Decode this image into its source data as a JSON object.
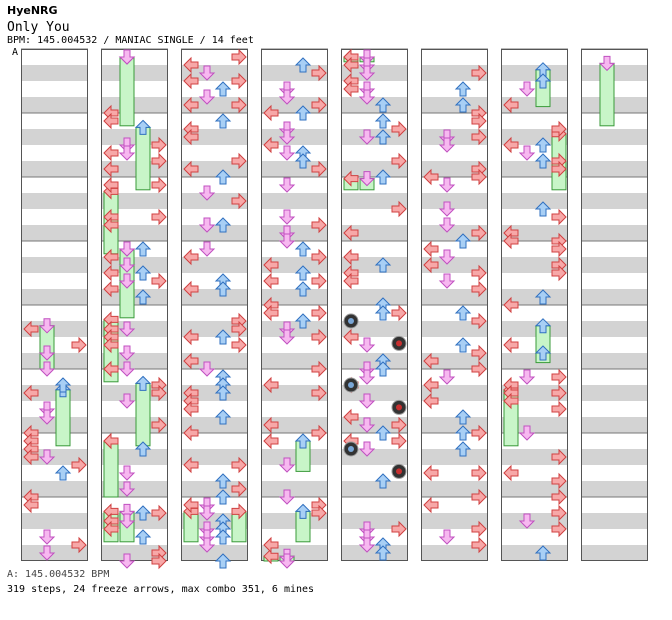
{
  "header": {
    "artist": "HyeNRG",
    "title": "Only You",
    "info": "BPM: 145.004532 / MANIAC SINGLE / 14 feet",
    "section_marker": "A"
  },
  "footer": {
    "bpm_note": "A: 145.004532 BPM",
    "stats": "319 steps, 24 freeze arrows, max combo 351, 6 mines"
  },
  "colors": {
    "left_arrow": "#f7a8a8",
    "down_arrow": "#f7b8f0",
    "up_arrow": "#a8cff5",
    "right_arrow": "#f7a8a8",
    "freeze": "#c8f5c8",
    "stripe": "#d3d3d3"
  },
  "chart_data": {
    "type": "step-chart",
    "columns": 8,
    "measures_per_column": 8,
    "lanes": [
      "left",
      "down",
      "up",
      "right"
    ],
    "freezes": [
      {
        "col": 1,
        "lane": 1,
        "start": 0.0,
        "end": 1.2
      },
      {
        "col": 1,
        "lane": 2,
        "start": 1.1,
        "end": 2.2
      },
      {
        "col": 1,
        "lane": 0,
        "start": 2.1,
        "end": 3.2
      },
      {
        "col": 1,
        "lane": 1,
        "start": 3.0,
        "end": 4.2
      },
      {
        "col": 1,
        "lane": 0,
        "start": 4.1,
        "end": 5.2
      },
      {
        "col": 1,
        "lane": 2,
        "start": 5.1,
        "end": 6.2
      },
      {
        "col": 1,
        "lane": 0,
        "start": 6.0,
        "end": 7.0
      },
      {
        "col": 1,
        "lane": 0,
        "start": 7.1,
        "end": 7.7
      },
      {
        "col": 1,
        "lane": 1,
        "start": 7.1,
        "end": 7.7
      },
      {
        "col": 0,
        "lane": 1,
        "start": 4.2,
        "end": 5.0
      },
      {
        "col": 0,
        "lane": 2,
        "start": 5.2,
        "end": 6.2
      },
      {
        "col": 2,
        "lane": 0,
        "start": 7.1,
        "end": 7.7
      },
      {
        "col": 2,
        "lane": 3,
        "start": 7.1,
        "end": 7.7
      },
      {
        "col": 3,
        "lane": 2,
        "start": 6.0,
        "end": 6.6
      },
      {
        "col": 3,
        "lane": 2,
        "start": 7.1,
        "end": 7.7
      },
      {
        "col": 3,
        "lane": 0,
        "start": 7.8,
        "end": 8.0
      },
      {
        "col": 3,
        "lane": 1,
        "start": 7.8,
        "end": 8.0
      },
      {
        "col": 4,
        "lane": 0,
        "start": 0.0,
        "end": 0.2
      },
      {
        "col": 4,
        "lane": 1,
        "start": 0.0,
        "end": 0.2
      },
      {
        "col": 4,
        "lane": 0,
        "start": 1.9,
        "end": 2.2
      },
      {
        "col": 4,
        "lane": 1,
        "start": 1.9,
        "end": 2.2
      },
      {
        "col": 6,
        "lane": 2,
        "start": 0.2,
        "end": 0.9
      },
      {
        "col": 6,
        "lane": 3,
        "start": 1.2,
        "end": 2.2
      },
      {
        "col": 6,
        "lane": 2,
        "start": 4.2,
        "end": 4.9
      },
      {
        "col": 6,
        "lane": 0,
        "start": 5.2,
        "end": 6.2
      },
      {
        "col": 7,
        "lane": 1,
        "start": 0.1,
        "end": 1.2
      }
    ],
    "mines": [
      {
        "col": 4,
        "lane": 0,
        "pos": 4.25
      },
      {
        "col": 4,
        "lane": 3,
        "pos": 4.6
      },
      {
        "col": 4,
        "lane": 0,
        "pos": 5.25
      },
      {
        "col": 4,
        "lane": 3,
        "pos": 5.6
      },
      {
        "col": 4,
        "lane": 0,
        "pos": 6.25
      },
      {
        "col": 4,
        "lane": 3,
        "pos": 6.6
      }
    ]
  }
}
